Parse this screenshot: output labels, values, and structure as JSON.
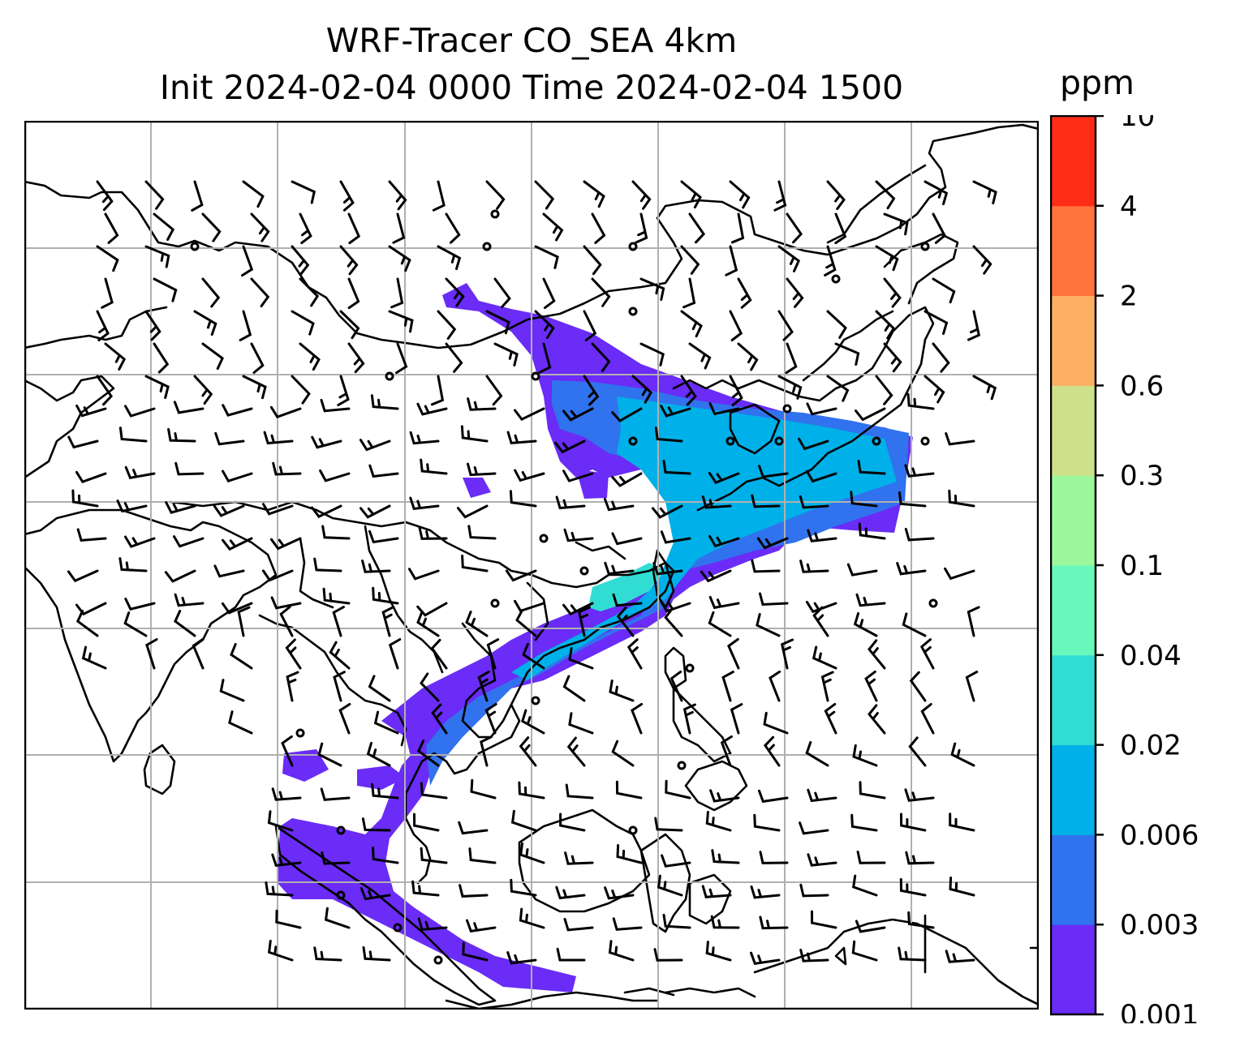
{
  "title": {
    "line1": "WRF-Tracer CO_SEA 4km",
    "line2": "Init 2024-02-04 0000 Time 2024-02-04 1500"
  },
  "colorbar": {
    "unit": "ppm",
    "levels": [
      "0.001",
      "0.003",
      "0.006",
      "0.02",
      "0.04",
      "0.1",
      "0.3",
      "0.6",
      "2",
      "4",
      "10"
    ],
    "colors": [
      "#6a2cf6",
      "#3172ee",
      "#00b0e8",
      "#31dcd2",
      "#68f8bc",
      "#9cf79c",
      "#cfe08a",
      "#fdb064",
      "#ff743c",
      "#ff2c16"
    ]
  },
  "map": {
    "land_outline_color": "#000000",
    "gridline_color": "#b0b0b0",
    "plume_colors": {
      "low": "#6a2cf6",
      "mid": "#3172ee",
      "high": "#00b0e8",
      "peak": "#31dcd2"
    }
  }
}
